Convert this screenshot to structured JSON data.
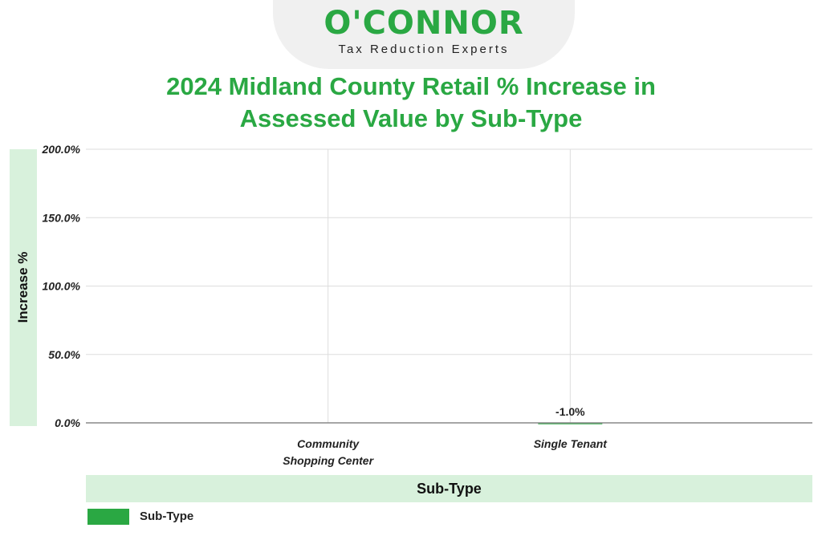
{
  "logo": {
    "name": "O'CONNOR",
    "tagline": "Tax Reduction Experts"
  },
  "colors": {
    "accent": "#2aa843",
    "band": "#d8f1dc",
    "grid": "#dddddd",
    "baseline": "#888888"
  },
  "chart_data": {
    "type": "bar",
    "title": "2024 Midland County Retail % Increase in Assessed Value by Sub-Type",
    "title_lines": [
      "2024 Midland County Retail % Increase in",
      "Assessed Value by Sub-Type"
    ],
    "xlabel": "Sub-Type",
    "ylabel": "Increase %",
    "categories": [
      {
        "label_lines": [
          "Community",
          "Shopping Center"
        ]
      },
      {
        "label_lines": [
          "Single Tenant"
        ]
      }
    ],
    "series": [
      {
        "name": "Sub-Type",
        "values": [
          null,
          -1.0
        ],
        "value_labels": [
          "",
          "-1.0%"
        ]
      }
    ],
    "yticks": [
      {
        "value": 0,
        "label": "0.0%"
      },
      {
        "value": 50,
        "label": "50.0%"
      },
      {
        "value": 100,
        "label": "100.0%"
      },
      {
        "value": 150,
        "label": "150.0%"
      },
      {
        "value": 200,
        "label": "200.0%"
      }
    ],
    "ylim": [
      0,
      200
    ],
    "grid": true,
    "legend": {
      "placement": "bottom-left",
      "label": "Sub-Type"
    }
  }
}
